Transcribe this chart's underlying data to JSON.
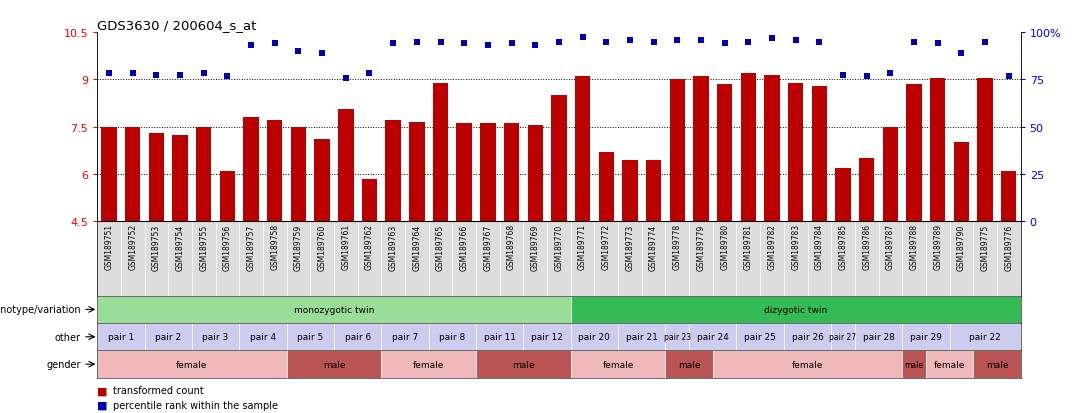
{
  "title": "GDS3630 / 200604_s_at",
  "samples": [
    "GSM189751",
    "GSM189752",
    "GSM189753",
    "GSM189754",
    "GSM189755",
    "GSM189756",
    "GSM189757",
    "GSM189758",
    "GSM189759",
    "GSM189760",
    "GSM189761",
    "GSM189762",
    "GSM189763",
    "GSM189764",
    "GSM189765",
    "GSM189766",
    "GSM189767",
    "GSM189768",
    "GSM189769",
    "GSM189770",
    "GSM189771",
    "GSM189772",
    "GSM189773",
    "GSM189774",
    "GSM189778",
    "GSM189779",
    "GSM189780",
    "GSM189781",
    "GSM189782",
    "GSM189783",
    "GSM189784",
    "GSM189785",
    "GSM189786",
    "GSM189787",
    "GSM189788",
    "GSM189789",
    "GSM189790",
    "GSM189775",
    "GSM189776"
  ],
  "bar_values": [
    7.5,
    7.5,
    7.3,
    7.25,
    7.5,
    6.1,
    7.8,
    7.7,
    7.5,
    7.1,
    8.05,
    5.85,
    7.7,
    7.65,
    8.9,
    7.6,
    7.6,
    7.6,
    7.55,
    8.5,
    9.1,
    6.7,
    6.45,
    6.45,
    9.0,
    9.1,
    8.85,
    9.2,
    9.15,
    8.9,
    8.8,
    6.2,
    6.5,
    7.5,
    8.85,
    9.05,
    7.0,
    9.05,
    6.1
  ],
  "pct_values": [
    9.2,
    9.2,
    9.15,
    9.15,
    9.2,
    9.1,
    10.1,
    10.15,
    9.9,
    9.85,
    9.05,
    9.2,
    10.15,
    10.2,
    10.2,
    10.15,
    10.1,
    10.15,
    10.1,
    10.2,
    10.35,
    10.2,
    10.25,
    10.2,
    10.25,
    10.25,
    10.15,
    10.2,
    10.3,
    10.25,
    10.2,
    9.15,
    9.1,
    9.2,
    10.2,
    10.15,
    9.85,
    10.2,
    9.1
  ],
  "ylim_min": 4.5,
  "ylim_max": 10.5,
  "yticks_left": [
    4.5,
    6.0,
    7.5,
    9.0,
    10.5
  ],
  "yticks_right_labels": [
    "0",
    "25",
    "50",
    "75",
    "100%"
  ],
  "bar_color": "#bb0000",
  "dot_color": "#0000bb",
  "genotype_groups": [
    {
      "text": "monozygotic twin",
      "start": 0,
      "end": 19,
      "color": "#99dd99"
    },
    {
      "text": "dizygotic twin",
      "start": 20,
      "end": 38,
      "color": "#33bb55"
    }
  ],
  "other_groups": [
    {
      "text": "pair 1",
      "start": 0,
      "end": 1,
      "color": "#ccccee"
    },
    {
      "text": "pair 2",
      "start": 2,
      "end": 3,
      "color": "#ccccee"
    },
    {
      "text": "pair 3",
      "start": 4,
      "end": 5,
      "color": "#ccccee"
    },
    {
      "text": "pair 4",
      "start": 6,
      "end": 7,
      "color": "#ccccee"
    },
    {
      "text": "pair 5",
      "start": 8,
      "end": 9,
      "color": "#ccccee"
    },
    {
      "text": "pair 6",
      "start": 10,
      "end": 11,
      "color": "#ccccee"
    },
    {
      "text": "pair 7",
      "start": 12,
      "end": 13,
      "color": "#ccccee"
    },
    {
      "text": "pair 8",
      "start": 14,
      "end": 15,
      "color": "#ccccee"
    },
    {
      "text": "pair 11",
      "start": 16,
      "end": 17,
      "color": "#ccccee"
    },
    {
      "text": "pair 12",
      "start": 18,
      "end": 19,
      "color": "#ccccee"
    },
    {
      "text": "pair 20",
      "start": 20,
      "end": 21,
      "color": "#ccccee"
    },
    {
      "text": "pair 21",
      "start": 22,
      "end": 23,
      "color": "#ccccee"
    },
    {
      "text": "pair 23",
      "start": 24,
      "end": 24,
      "color": "#ccccee"
    },
    {
      "text": "pair 24",
      "start": 25,
      "end": 26,
      "color": "#ccccee"
    },
    {
      "text": "pair 25",
      "start": 27,
      "end": 28,
      "color": "#ccccee"
    },
    {
      "text": "pair 26",
      "start": 29,
      "end": 30,
      "color": "#ccccee"
    },
    {
      "text": "pair 27",
      "start": 31,
      "end": 31,
      "color": "#ccccee"
    },
    {
      "text": "pair 28",
      "start": 32,
      "end": 33,
      "color": "#ccccee"
    },
    {
      "text": "pair 29",
      "start": 34,
      "end": 35,
      "color": "#ccccee"
    },
    {
      "text": "pair 22",
      "start": 36,
      "end": 38,
      "color": "#ccccee"
    }
  ],
  "gender_groups": [
    {
      "text": "female",
      "start": 0,
      "end": 7,
      "color": "#f0b8b8"
    },
    {
      "text": "male",
      "start": 8,
      "end": 11,
      "color": "#bb5555"
    },
    {
      "text": "female",
      "start": 12,
      "end": 15,
      "color": "#f0b8b8"
    },
    {
      "text": "male",
      "start": 16,
      "end": 19,
      "color": "#bb5555"
    },
    {
      "text": "female",
      "start": 20,
      "end": 23,
      "color": "#f0b8b8"
    },
    {
      "text": "male",
      "start": 24,
      "end": 25,
      "color": "#bb5555"
    },
    {
      "text": "female",
      "start": 26,
      "end": 33,
      "color": "#f0b8b8"
    },
    {
      "text": "male",
      "start": 34,
      "end": 34,
      "color": "#bb5555"
    },
    {
      "text": "female",
      "start": 35,
      "end": 36,
      "color": "#f0b8b8"
    },
    {
      "text": "male",
      "start": 37,
      "end": 38,
      "color": "#bb5555"
    }
  ],
  "tick_label_bg": "#dddddd",
  "legend_items": [
    {
      "label": "transformed count",
      "color": "#bb0000"
    },
    {
      "label": "percentile rank within the sample",
      "color": "#0000bb"
    }
  ]
}
